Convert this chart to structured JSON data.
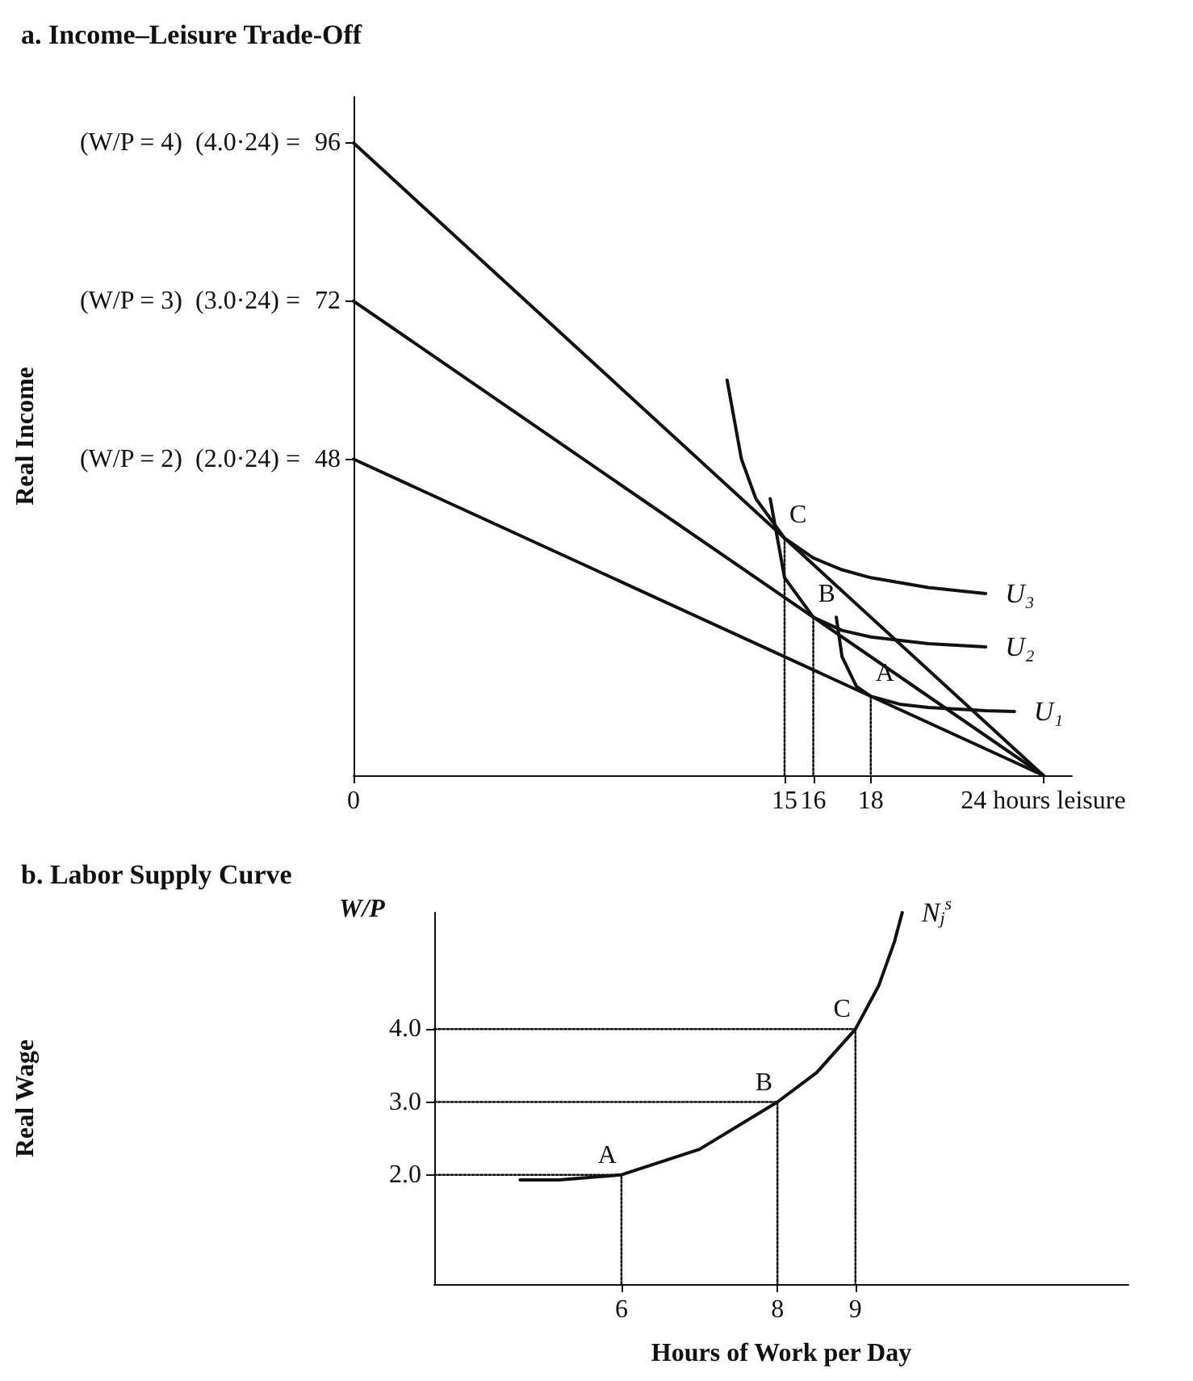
{
  "chart_data": [
    {
      "type": "line",
      "title": "a. Income–Leisure Trade-Off",
      "ylabel": "Real Income",
      "legend": false,
      "grid": false,
      "marker": "none",
      "line_style": "solid",
      "xlim": [
        0,
        25
      ],
      "ylim": [
        0,
        103
      ],
      "xticks": [
        0,
        15,
        16,
        18,
        {
          "value": 24,
          "label": "24 hours leisure"
        }
      ],
      "yticks": [
        48,
        72,
        96
      ],
      "annotations": [
        {
          "text": "(W/P = 2)  (2.0·24) =",
          "x": 0,
          "y": 48
        },
        {
          "text": "(W/P = 3)  (3.0·24) =",
          "x": 0,
          "y": 72
        },
        {
          "text": "(W/P = 4)  (4.0·24) =",
          "x": 0,
          "y": 96
        },
        {
          "text": "C",
          "x": 15,
          "y": 36
        },
        {
          "text": "B",
          "x": 16,
          "y": 24
        },
        {
          "text": "A",
          "x": 18,
          "y": 12
        }
      ],
      "series": [
        {
          "color": "#111111",
          "x": [
            0,
            24
          ],
          "values": [
            96,
            0
          ]
        },
        {
          "color": "#111111",
          "x": [
            0,
            24
          ],
          "values": [
            72,
            0
          ]
        },
        {
          "color": "#111111",
          "x": [
            0,
            24
          ],
          "values": [
            48,
            0
          ]
        },
        {
          "name": "U₃",
          "color": "#111111",
          "x": [
            13,
            13.5,
            14,
            15,
            16,
            17,
            18,
            20,
            22
          ],
          "values": [
            60,
            48,
            42,
            36,
            33,
            31.2,
            30,
            28.5,
            27.6
          ]
        },
        {
          "name": "U₂",
          "color": "#111111",
          "x": [
            14.5,
            15,
            16,
            17,
            18,
            20,
            22
          ],
          "values": [
            42,
            30,
            24,
            22,
            21,
            20,
            19.5
          ]
        },
        {
          "name": "U₁",
          "color": "#111111",
          "x": [
            16.8,
            17,
            17.5,
            18,
            19,
            20,
            22,
            23
          ],
          "values": [
            24,
            18,
            13.5,
            12,
            10.8,
            10.3,
            9.8,
            9.7
          ]
        },
        {
          "color": "#111111",
          "line_style": "dotted",
          "x": [
            15,
            15
          ],
          "values": [
            36,
            0
          ]
        },
        {
          "color": "#111111",
          "line_style": "dotted",
          "x": [
            16,
            16
          ],
          "values": [
            24,
            0
          ]
        },
        {
          "color": "#111111",
          "line_style": "dotted",
          "x": [
            18,
            18
          ],
          "values": [
            12,
            0
          ]
        }
      ]
    },
    {
      "type": "line",
      "title": "b. Labor Supply Curve",
      "xlabel": "Hours of Work per Day",
      "ylabel": "Real Wage",
      "legend": false,
      "grid": false,
      "marker": "none",
      "line_style": "solid",
      "xlim": [
        3.6,
        12.5
      ],
      "ylim": [
        0.5,
        5.6
      ],
      "xticks": [
        6,
        8,
        9
      ],
      "yticks": [
        {
          "value": 2,
          "label": "2.0"
        },
        {
          "value": 3,
          "label": "3.0"
        },
        {
          "value": 4,
          "label": "4.0"
        }
      ],
      "annotations": [
        "W/P",
        {
          "text": "A",
          "x": 6,
          "y": 2
        },
        {
          "text": "B",
          "x": 8,
          "y": 3
        },
        {
          "text": "C",
          "x": 9,
          "y": 4
        }
      ],
      "series": [
        {
          "name": "N$_{j}$$^{s}$",
          "color": "#111111",
          "x": [
            4.7,
            5.2,
            6,
            7,
            8,
            8.5,
            9,
            9.3,
            9.5,
            9.6
          ],
          "values": [
            1.93,
            1.93,
            2,
            2.35,
            3,
            3.4,
            4,
            4.6,
            5.2,
            5.6
          ]
        },
        {
          "color": "#111111",
          "line_style": "dotted",
          "x": [
            3.6,
            6,
            6
          ],
          "values": [
            2,
            2,
            0.5
          ]
        },
        {
          "color": "#111111",
          "line_style": "dotted",
          "x": [
            3.6,
            8,
            8
          ],
          "values": [
            3,
            3,
            0.5
          ]
        },
        {
          "color": "#111111",
          "line_style": "dotted",
          "x": [
            3.6,
            9,
            9
          ],
          "values": [
            4,
            4,
            0.5
          ]
        }
      ]
    }
  ]
}
